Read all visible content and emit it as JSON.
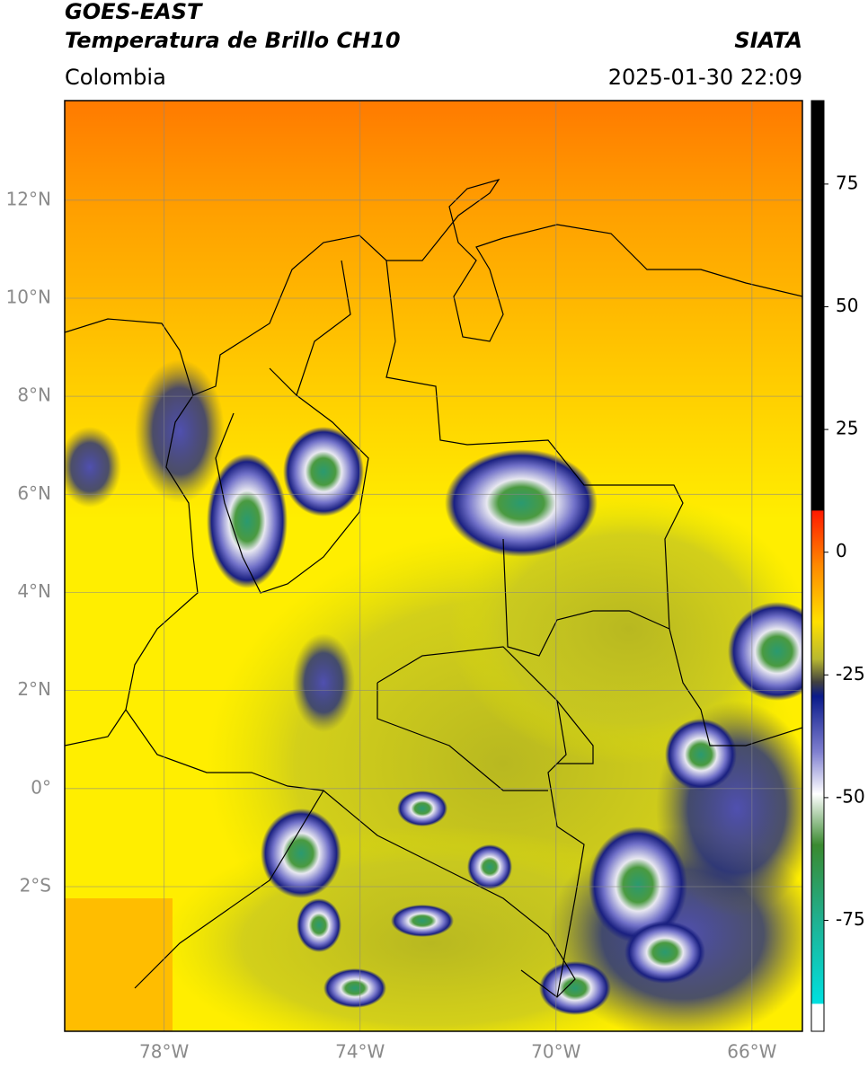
{
  "header": {
    "satellite": "GOES-EAST",
    "product": "Temperatura de Brillo CH10",
    "agency": "SIATA",
    "region": "Colombia",
    "datetime": "2025-01-30 22:09"
  },
  "map": {
    "lon_range": [
      -80.03,
      -64.97
    ],
    "lat_range": [
      -4.95,
      14.03
    ],
    "lon_ticks": [
      {
        "value": -78,
        "label": "78°W"
      },
      {
        "value": -74,
        "label": "74°W"
      },
      {
        "value": -70,
        "label": "70°W"
      },
      {
        "value": -66,
        "label": "66°W"
      }
    ],
    "lat_ticks": [
      {
        "value": 12,
        "label": "12°N"
      },
      {
        "value": 10,
        "label": "10°N"
      },
      {
        "value": 8,
        "label": "8°N"
      },
      {
        "value": 6,
        "label": "6°N"
      },
      {
        "value": 4,
        "label": "4°N"
      },
      {
        "value": 2,
        "label": "2°N"
      },
      {
        "value": 0,
        "label": "0°"
      },
      {
        "value": -2,
        "label": "2°S"
      }
    ],
    "grid": true
  },
  "colorbar": {
    "lim": [
      -97.6,
      92
    ],
    "ticks": [
      75,
      50,
      25,
      0,
      -25,
      -50,
      -75
    ]
  }
}
